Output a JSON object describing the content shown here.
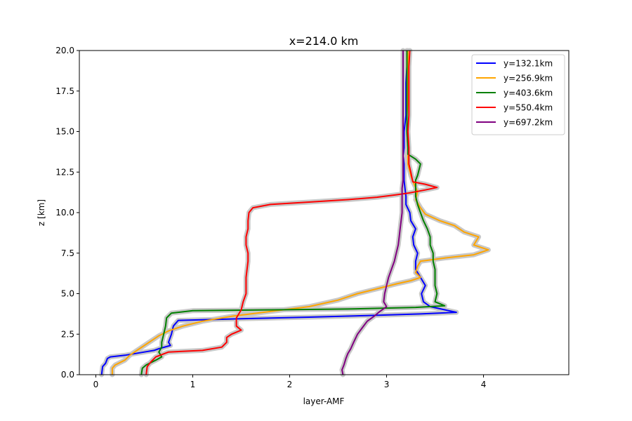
{
  "chart_data": {
    "type": "line",
    "title": "x=214.0 km",
    "xlabel": "layer-AMF",
    "ylabel": "z [km]",
    "xlim": [
      -0.17,
      4.88
    ],
    "ylim": [
      0,
      20
    ],
    "xticks": [
      "0",
      "1",
      "2",
      "3",
      "4"
    ],
    "yticks": [
      "0.0",
      "2.5",
      "5.0",
      "7.5",
      "10.0",
      "12.5",
      "15.0",
      "17.5",
      "20.0"
    ],
    "grid": false,
    "legend_position": "upper right",
    "uncertainty_band_color": "#c8c8c8",
    "series": [
      {
        "name": "y=132.1km",
        "color": "#0000ff",
        "points": [
          [
            0.06,
            0
          ],
          [
            0.07,
            0.5
          ],
          [
            0.1,
            0.7
          ],
          [
            0.12,
            1.0
          ],
          [
            0.15,
            1.1
          ],
          [
            0.3,
            1.2
          ],
          [
            0.5,
            1.4
          ],
          [
            0.6,
            1.5
          ],
          [
            0.65,
            1.6
          ],
          [
            0.77,
            1.8
          ],
          [
            0.75,
            2.0
          ],
          [
            0.78,
            2.5
          ],
          [
            0.8,
            3.0
          ],
          [
            0.85,
            3.35
          ],
          [
            1.5,
            3.45
          ],
          [
            2.2,
            3.55
          ],
          [
            2.8,
            3.65
          ],
          [
            3.35,
            3.75
          ],
          [
            3.72,
            3.85
          ],
          [
            3.45,
            4.2
          ],
          [
            3.38,
            4.5
          ],
          [
            3.36,
            5.0
          ],
          [
            3.4,
            5.5
          ],
          [
            3.35,
            6.0
          ],
          [
            3.3,
            6.5
          ],
          [
            3.3,
            7.0
          ],
          [
            3.32,
            7.5
          ],
          [
            3.28,
            8.0
          ],
          [
            3.27,
            8.5
          ],
          [
            3.3,
            9.0
          ],
          [
            3.25,
            9.5
          ],
          [
            3.24,
            10.0
          ],
          [
            3.2,
            10.5
          ],
          [
            3.2,
            11.0
          ],
          [
            3.19,
            11.5
          ],
          [
            3.18,
            12.0
          ],
          [
            3.18,
            12.5
          ],
          [
            3.18,
            13.0
          ],
          [
            3.17,
            13.5
          ],
          [
            3.18,
            14.0
          ],
          [
            3.18,
            15.0
          ],
          [
            3.2,
            16.0
          ],
          [
            3.2,
            17.0
          ],
          [
            3.2,
            18.0
          ],
          [
            3.21,
            19.0
          ],
          [
            3.21,
            20.0
          ]
        ]
      },
      {
        "name": "y=256.9km",
        "color": "#ffa500",
        "points": [
          [
            0.17,
            0
          ],
          [
            0.17,
            0.4
          ],
          [
            0.2,
            0.6
          ],
          [
            0.3,
            0.9
          ],
          [
            0.35,
            1.2
          ],
          [
            0.45,
            1.6
          ],
          [
            0.55,
            2.0
          ],
          [
            0.65,
            2.4
          ],
          [
            0.75,
            2.7
          ],
          [
            0.9,
            3.0
          ],
          [
            1.1,
            3.3
          ],
          [
            1.4,
            3.6
          ],
          [
            1.8,
            3.9
          ],
          [
            2.2,
            4.2
          ],
          [
            2.5,
            4.6
          ],
          [
            2.7,
            5.0
          ],
          [
            2.9,
            5.3
          ],
          [
            3.1,
            5.6
          ],
          [
            3.25,
            5.8
          ],
          [
            3.35,
            6.0
          ],
          [
            3.3,
            6.3
          ],
          [
            3.32,
            6.7
          ],
          [
            3.35,
            7.0
          ],
          [
            3.6,
            7.2
          ],
          [
            3.9,
            7.4
          ],
          [
            4.05,
            7.7
          ],
          [
            3.9,
            8.0
          ],
          [
            3.95,
            8.5
          ],
          [
            3.8,
            8.8
          ],
          [
            3.7,
            9.2
          ],
          [
            3.55,
            9.5
          ],
          [
            3.4,
            9.9
          ],
          [
            3.35,
            10.3
          ],
          [
            3.3,
            10.8
          ],
          [
            3.32,
            11.3
          ],
          [
            3.28,
            11.8
          ],
          [
            3.25,
            12.3
          ],
          [
            3.22,
            13.0
          ],
          [
            3.22,
            14.0
          ],
          [
            3.21,
            15.0
          ],
          [
            3.21,
            16.0
          ],
          [
            3.22,
            17.0
          ],
          [
            3.22,
            18.0
          ],
          [
            3.22,
            19.0
          ],
          [
            3.22,
            20.0
          ]
        ]
      },
      {
        "name": "y=403.6km",
        "color": "#008000",
        "points": [
          [
            0.47,
            0
          ],
          [
            0.48,
            0.4
          ],
          [
            0.52,
            0.6
          ],
          [
            0.62,
            0.9
          ],
          [
            0.68,
            1.1
          ],
          [
            0.65,
            1.4
          ],
          [
            0.68,
            1.7
          ],
          [
            0.68,
            2.0
          ],
          [
            0.7,
            2.5
          ],
          [
            0.72,
            3.0
          ],
          [
            0.73,
            3.5
          ],
          [
            0.78,
            3.8
          ],
          [
            1.0,
            3.95
          ],
          [
            1.8,
            4.0
          ],
          [
            2.6,
            4.05
          ],
          [
            3.3,
            4.15
          ],
          [
            3.6,
            4.25
          ],
          [
            3.5,
            4.5
          ],
          [
            3.52,
            5.0
          ],
          [
            3.5,
            5.5
          ],
          [
            3.5,
            6.0
          ],
          [
            3.5,
            6.5
          ],
          [
            3.48,
            7.0
          ],
          [
            3.48,
            7.5
          ],
          [
            3.45,
            8.0
          ],
          [
            3.45,
            8.5
          ],
          [
            3.42,
            9.0
          ],
          [
            3.38,
            9.5
          ],
          [
            3.35,
            10.0
          ],
          [
            3.32,
            10.5
          ],
          [
            3.3,
            11.0
          ],
          [
            3.3,
            11.5
          ],
          [
            3.3,
            12.0
          ],
          [
            3.32,
            12.3
          ],
          [
            3.35,
            13.0
          ],
          [
            3.3,
            13.3
          ],
          [
            3.22,
            13.6
          ],
          [
            3.22,
            14.0
          ],
          [
            3.21,
            15.0
          ],
          [
            3.21,
            16.0
          ],
          [
            3.21,
            17.0
          ],
          [
            3.21,
            18.0
          ],
          [
            3.21,
            19.0
          ],
          [
            3.21,
            20.0
          ]
        ]
      },
      {
        "name": "y=550.4km",
        "color": "#ff0000",
        "points": [
          [
            0.52,
            0
          ],
          [
            0.53,
            0.5
          ],
          [
            0.57,
            0.8
          ],
          [
            0.62,
            1.1
          ],
          [
            0.75,
            1.4
          ],
          [
            1.1,
            1.5
          ],
          [
            1.3,
            1.7
          ],
          [
            1.35,
            2.0
          ],
          [
            1.35,
            2.3
          ],
          [
            1.4,
            2.5
          ],
          [
            1.5,
            2.75
          ],
          [
            1.45,
            3.0
          ],
          [
            1.45,
            3.5
          ],
          [
            1.5,
            4.0
          ],
          [
            1.52,
            4.5
          ],
          [
            1.55,
            5.0
          ],
          [
            1.55,
            5.5
          ],
          [
            1.55,
            6.0
          ],
          [
            1.56,
            6.5
          ],
          [
            1.57,
            7.0
          ],
          [
            1.57,
            7.5
          ],
          [
            1.55,
            8.0
          ],
          [
            1.55,
            8.5
          ],
          [
            1.57,
            9.0
          ],
          [
            1.57,
            9.5
          ],
          [
            1.58,
            10.0
          ],
          [
            1.62,
            10.3
          ],
          [
            1.8,
            10.5
          ],
          [
            2.2,
            10.65
          ],
          [
            2.6,
            10.8
          ],
          [
            2.9,
            10.95
          ],
          [
            3.1,
            11.1
          ],
          [
            3.22,
            11.2
          ],
          [
            3.4,
            11.4
          ],
          [
            3.52,
            11.55
          ],
          [
            3.4,
            11.75
          ],
          [
            3.27,
            11.9
          ],
          [
            3.25,
            12.5
          ],
          [
            3.23,
            13.0
          ],
          [
            3.23,
            14.0
          ],
          [
            3.22,
            15.0
          ],
          [
            3.23,
            16.0
          ],
          [
            3.23,
            17.0
          ],
          [
            3.23,
            18.0
          ],
          [
            3.23,
            19.0
          ],
          [
            3.24,
            20.0
          ]
        ]
      },
      {
        "name": "y=697.2km",
        "color": "#800080",
        "points": [
          [
            2.55,
            0
          ],
          [
            2.54,
            0.3
          ],
          [
            2.56,
            0.6
          ],
          [
            2.58,
            1.0
          ],
          [
            2.6,
            1.3
          ],
          [
            2.63,
            1.6
          ],
          [
            2.66,
            2.0
          ],
          [
            2.7,
            2.5
          ],
          [
            2.75,
            2.9
          ],
          [
            2.8,
            3.3
          ],
          [
            2.87,
            3.6
          ],
          [
            2.93,
            3.9
          ],
          [
            3.0,
            4.2
          ],
          [
            2.97,
            4.5
          ],
          [
            2.98,
            5.0
          ],
          [
            3.0,
            5.5
          ],
          [
            3.02,
            6.0
          ],
          [
            3.05,
            6.5
          ],
          [
            3.08,
            7.0
          ],
          [
            3.1,
            7.5
          ],
          [
            3.12,
            8.0
          ],
          [
            3.13,
            8.5
          ],
          [
            3.14,
            9.0
          ],
          [
            3.15,
            9.5
          ],
          [
            3.16,
            10.0
          ],
          [
            3.16,
            10.5
          ],
          [
            3.16,
            11.0
          ],
          [
            3.16,
            11.5
          ],
          [
            3.17,
            12.0
          ],
          [
            3.17,
            13.0
          ],
          [
            3.17,
            14.0
          ],
          [
            3.17,
            15.0
          ],
          [
            3.17,
            16.0
          ],
          [
            3.17,
            17.0
          ],
          [
            3.17,
            18.0
          ],
          [
            3.17,
            19.0
          ],
          [
            3.17,
            20.0
          ]
        ]
      }
    ]
  }
}
